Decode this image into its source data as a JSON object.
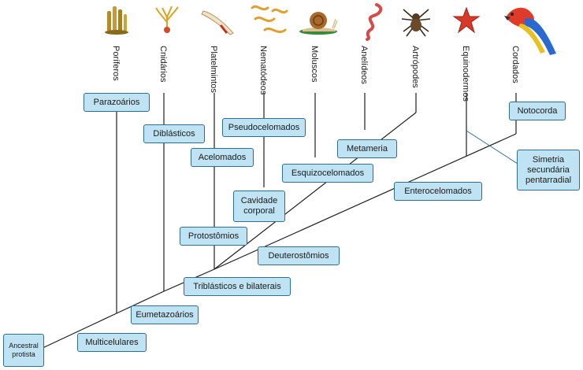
{
  "diagram": {
    "taxa": [
      {
        "id": "porifera",
        "label": "Poríferos",
        "icon": "sponge-icon"
      },
      {
        "id": "cnidaria",
        "label": "Cnidários",
        "icon": "coral-icon"
      },
      {
        "id": "platyhelminthes",
        "label": "Platelmintos",
        "icon": "flatworm-icon"
      },
      {
        "id": "nematoda",
        "label": "Nematódeos",
        "icon": "roundworm-icon"
      },
      {
        "id": "mollusca",
        "label": "Moluscos",
        "icon": "snail-icon"
      },
      {
        "id": "annelida",
        "label": "Anelídeos",
        "icon": "earthworm-icon"
      },
      {
        "id": "arthropoda",
        "label": "Artrópodes",
        "icon": "spider-icon"
      },
      {
        "id": "echinodermata",
        "label": "Equinodermos",
        "icon": "starfish-icon"
      },
      {
        "id": "chordata",
        "label": "Cordados",
        "icon": "parrot-icon"
      }
    ],
    "traits": {
      "ancestral": "Ancestral protista",
      "multicelulares": "Multicelulares",
      "parazoarios": "Parazoários",
      "eumetazoarios": "Eumetazoários",
      "diblasticos": "Diblásticos",
      "triblasticos": "Triblásticos e bilaterais",
      "protostomios": "Protostômios",
      "acelomados": "Acelomados",
      "cavidade": "Cavidade corporal",
      "pseudocelomados": "Pseudocelomados",
      "esquizocelomados": "Esquizocelomados",
      "metameria": "Metameria",
      "deuterostomios": "Deuterostômios",
      "enterocelomados": "Enterocelomados",
      "simetria": "Simetria secundária pentarradial",
      "notocorda": "Notocorda"
    }
  }
}
